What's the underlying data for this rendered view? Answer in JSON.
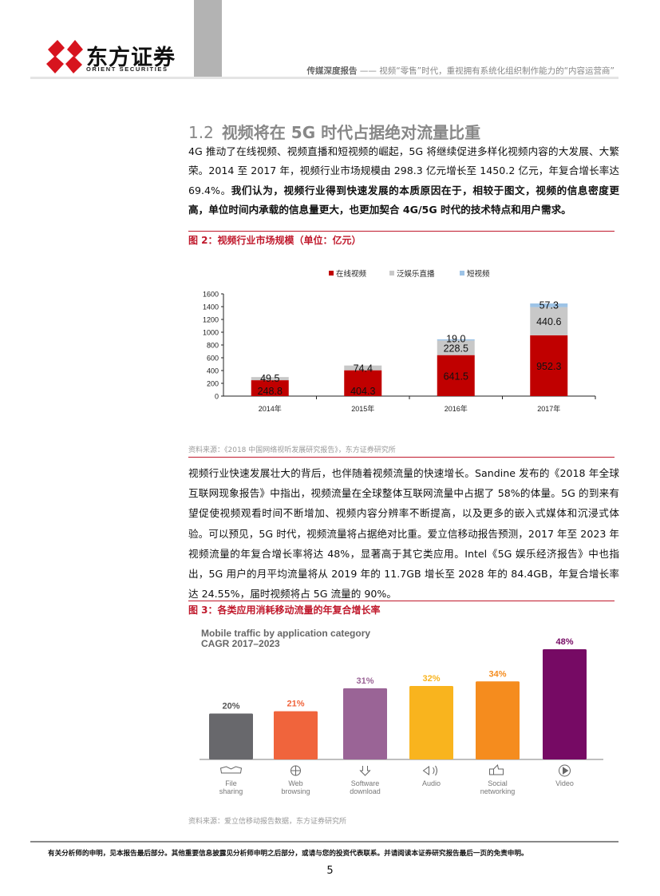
{
  "header": {
    "logo_cn": "东方证券",
    "logo_en": "ORIENT SECURITIES",
    "report_type": "传媒深度报告",
    "report_title": "—— 视频“零售”时代，重视拥有系统化组织制作能力的“内容运营商”"
  },
  "section": {
    "number": "1.2",
    "title": "视频将在 5G 时代占据绝对流量比重"
  },
  "para1": {
    "normal": "4G 推动了在线视频、视频直播和短视频的崛起，5G 将继续促进多样化视频内容的大发展、大繁荣。2014 至 2017 年，视频行业市场规模由 298.3 亿元增长至 1450.2 亿元，年复合增长率达 69.4%。",
    "bold": "我们认为，视频行业得到快速发展的本质原因在于，相较于图文，视频的信息密度更高，单位时间内承载的信息量更大，也更加契合 4G/5G 时代的技术特点和用户需求。"
  },
  "figure2": {
    "caption": "图 2：视频行业市场规模（单位：亿元）",
    "source": "资料来源：《2018 中国网络视听发展研究报告》，东方证券研究所"
  },
  "para2": "视频行业快速发展壮大的背后，也伴随着视频流量的快速增长。Sandine 发布的《2018 年全球互联网现象报告》中指出，视频流量在全球整体互联网流量中占据了 58%的体量。5G 的到来有望促使视频观看时间不断增加、视频内容分辨率不断提高，以及更多的嵌入式媒体和沉浸式体验。可以预见，5G 时代，视频流量将占据绝对比重。爱立信移动报告预测，2017 年至 2023 年视频流量的年复合增长率将达 48%，显著高于其它类应用。Intel《5G 娱乐经济报告》中也指出，5G 用户的月平均流量将从 2019 年的 11.7GB 增长至 2028 年的 84.4GB，年复合增长率达 24.55%，届时视频将占 5G 流量的 90%。",
  "figure3": {
    "caption": "图 3：各类应用消耗移动流量的年复合增长率",
    "source": "资料来源：爱立信移动报告数据，东方证券研究所"
  },
  "chart_data": [
    {
      "type": "bar",
      "stacked": true,
      "categories": [
        "2014年",
        "2015年",
        "2016年",
        "2017年"
      ],
      "series": [
        {
          "name": "在线视频",
          "color": "#c00000",
          "values": [
            248.8,
            404.3,
            641.5,
            952.3
          ]
        },
        {
          "name": "泛娱乐直播",
          "color": "#c8c8c8",
          "values": [
            49.5,
            74.4,
            228.5,
            440.6
          ]
        },
        {
          "name": "短视频",
          "color": "#9dc3e6",
          "values": [
            null,
            null,
            19.0,
            57.3
          ]
        }
      ],
      "data_labels": [
        [
          "248.8",
          "404.3",
          "641.5",
          "952.3"
        ],
        [
          "49.5",
          "74.4",
          "228.5",
          "440.6"
        ],
        [
          "",
          "",
          "19.0",
          "57.3"
        ]
      ],
      "ylim": [
        0,
        1600
      ],
      "yticks": [
        0,
        200,
        400,
        600,
        800,
        1000,
        1200,
        1400,
        1600
      ],
      "legend": "top",
      "grid": false
    },
    {
      "type": "bar",
      "title": "Mobile traffic by application category",
      "subtitle": "CAGR 2017–2023",
      "categories": [
        {
          "line1": "File",
          "line2": "sharing",
          "icon": "file-sharing-icon"
        },
        {
          "line1": "Web",
          "line2": "browsing",
          "icon": "globe-icon"
        },
        {
          "line1": "Software",
          "line2": "download",
          "icon": "download-icon"
        },
        {
          "line1": "Audio",
          "line2": "",
          "icon": "speaker-icon"
        },
        {
          "line1": "Social",
          "line2": "networking",
          "icon": "thumbs-up-icon"
        },
        {
          "line1": "Video",
          "line2": "",
          "icon": "play-icon"
        }
      ],
      "values": [
        20,
        21,
        31,
        32,
        34,
        48
      ],
      "labels": [
        "20%",
        "21%",
        "31%",
        "32%",
        "34%",
        "48%"
      ],
      "colors": [
        "#68686c",
        "#f0643c",
        "#9a6496",
        "#f9b41e",
        "#f58c1e",
        "#760a64"
      ],
      "grid": false
    }
  ],
  "footer": {
    "disclaimer": "有关分析师的申明，见本报告最后部分。其他重要信息披露见分析师申明之后部分，或请与您的投资代表联系。并请阅读本证券研究报告最后一页的免责申明。",
    "page_number": "5"
  }
}
